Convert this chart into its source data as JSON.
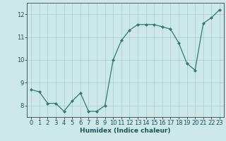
{
  "x": [
    0,
    1,
    2,
    3,
    4,
    5,
    6,
    7,
    8,
    9,
    10,
    11,
    12,
    13,
    14,
    15,
    16,
    17,
    18,
    19,
    20,
    21,
    22,
    23
  ],
  "y": [
    8.7,
    8.6,
    8.1,
    8.1,
    7.75,
    8.2,
    8.55,
    7.75,
    7.75,
    8.0,
    10.0,
    10.85,
    11.3,
    11.55,
    11.55,
    11.55,
    11.45,
    11.35,
    10.75,
    9.85,
    9.55,
    11.6,
    11.85,
    12.2
  ],
  "line_color": "#2e7d6e",
  "marker": "D",
  "marker_size": 2.0,
  "bg_color": "#cce8e8",
  "grid_color": "#b0d0d0",
  "xlabel": "Humidex (Indice chaleur)",
  "xlim": [
    -0.5,
    23.5
  ],
  "ylim": [
    7.5,
    12.5
  ],
  "yticks": [
    8,
    9,
    10,
    11,
    12
  ],
  "xticks": [
    0,
    1,
    2,
    3,
    4,
    5,
    6,
    7,
    8,
    9,
    10,
    11,
    12,
    13,
    14,
    15,
    16,
    17,
    18,
    19,
    20,
    21,
    22,
    23
  ],
  "xlabel_fontsize": 6.5,
  "tick_fontsize": 6,
  "spine_color": "#555555"
}
